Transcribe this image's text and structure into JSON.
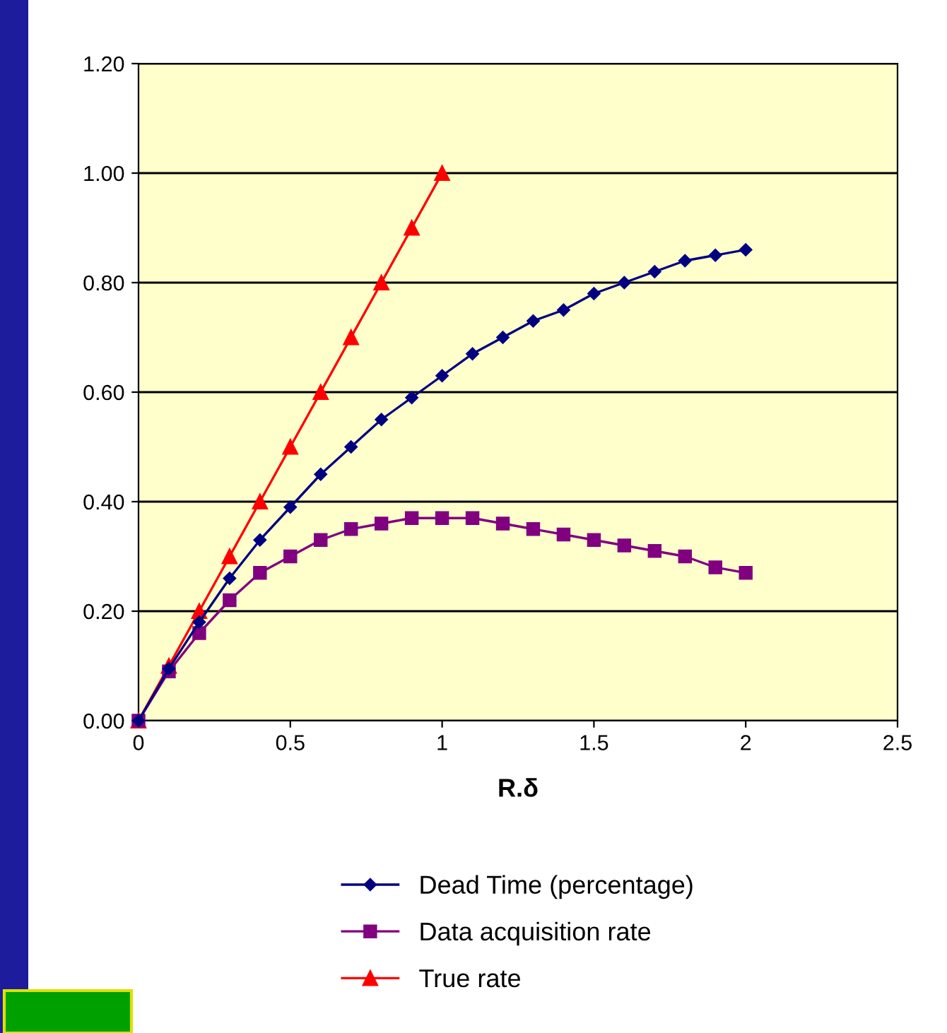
{
  "chart_data": {
    "type": "line",
    "xlabel": "R.δ",
    "xlim": [
      0,
      2.5
    ],
    "xticks": [
      0,
      0.5,
      1,
      1.5,
      2,
      2.5
    ],
    "ylim": [
      0,
      1.2
    ],
    "yticks": [
      {
        "value": 0,
        "label": "0.00"
      },
      {
        "value": 0.2,
        "label": "0.20"
      },
      {
        "value": 0.4,
        "label": "0.40"
      },
      {
        "value": 0.6,
        "label": "0.60"
      },
      {
        "value": 0.8,
        "label": "0.80"
      },
      {
        "value": 1.0,
        "label": "1.00"
      },
      {
        "value": 1.2,
        "label": "1.20"
      }
    ],
    "grid": "y",
    "legend": "bottom",
    "line_style": "solid",
    "series": [
      {
        "name": "Dead Time (percentage)",
        "color": "#000080",
        "marker": "diamond",
        "x": [
          0,
          0.1,
          0.2,
          0.3,
          0.4,
          0.5,
          0.6,
          0.7,
          0.8,
          0.9,
          1,
          1.1,
          1.2,
          1.3,
          1.4,
          1.5,
          1.6,
          1.7,
          1.8,
          1.9,
          2
        ],
        "values": [
          0,
          0.095,
          0.18,
          0.26,
          0.33,
          0.39,
          0.45,
          0.5,
          0.55,
          0.59,
          0.63,
          0.67,
          0.7,
          0.73,
          0.75,
          0.78,
          0.8,
          0.82,
          0.84,
          0.85,
          0.86
        ]
      },
      {
        "name": "Data acquisition rate",
        "color": "#800080",
        "marker": "square",
        "x": [
          0,
          0.1,
          0.2,
          0.3,
          0.4,
          0.5,
          0.6,
          0.7,
          0.8,
          0.9,
          1,
          1.1,
          1.2,
          1.3,
          1.4,
          1.5,
          1.6,
          1.7,
          1.8,
          1.9,
          2
        ],
        "values": [
          0,
          0.09,
          0.16,
          0.22,
          0.27,
          0.3,
          0.33,
          0.35,
          0.36,
          0.37,
          0.37,
          0.37,
          0.36,
          0.35,
          0.34,
          0.33,
          0.32,
          0.31,
          0.3,
          0.28,
          0.27
        ]
      },
      {
        "name": "True rate",
        "color": "#ff0000",
        "marker": "triangle",
        "x": [
          0,
          0.1,
          0.2,
          0.3,
          0.4,
          0.5,
          0.6,
          0.7,
          0.8,
          0.9,
          1
        ],
        "values": [
          0,
          0.1,
          0.2,
          0.3,
          0.4,
          0.5,
          0.6,
          0.7,
          0.8,
          0.9,
          1.0
        ]
      }
    ]
  }
}
